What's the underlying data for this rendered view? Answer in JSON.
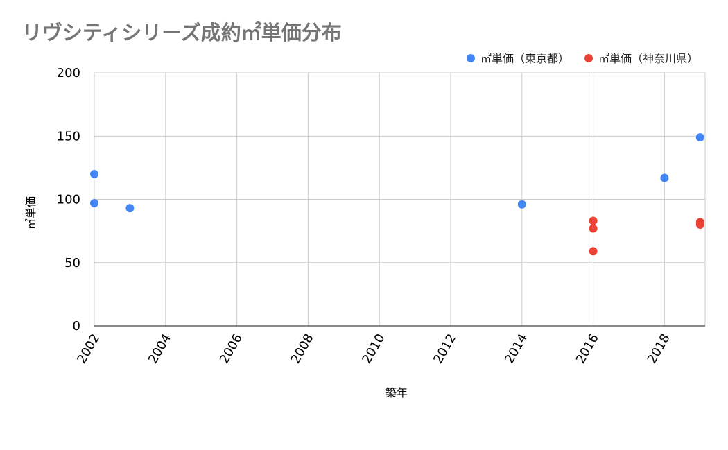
{
  "chart_data": {
    "type": "scatter",
    "title": "リヴシティシリーズ成約㎡単価分布",
    "xlabel": "築年",
    "ylabel": "㎡単価",
    "xlim": [
      2002,
      2019.3
    ],
    "ylim": [
      0,
      200
    ],
    "x_ticks": [
      2002,
      2004,
      2006,
      2008,
      2010,
      2012,
      2014,
      2016,
      2018
    ],
    "y_ticks": [
      0,
      50,
      100,
      150,
      200
    ],
    "grid": true,
    "legend_position": "top-right",
    "series": [
      {
        "name": "㎡単価（東京都）",
        "color": "#4285f4",
        "points": [
          {
            "x": 2002,
            "y": 120
          },
          {
            "x": 2002,
            "y": 97
          },
          {
            "x": 2003,
            "y": 93
          },
          {
            "x": 2014,
            "y": 96
          },
          {
            "x": 2018,
            "y": 117
          },
          {
            "x": 2019,
            "y": 149
          }
        ]
      },
      {
        "name": "㎡単価（神奈川県）",
        "color": "#ea4335",
        "points": [
          {
            "x": 2016,
            "y": 83
          },
          {
            "x": 2016,
            "y": 77
          },
          {
            "x": 2016,
            "y": 59
          },
          {
            "x": 2019,
            "y": 82
          },
          {
            "x": 2019,
            "y": 80
          }
        ]
      }
    ]
  }
}
